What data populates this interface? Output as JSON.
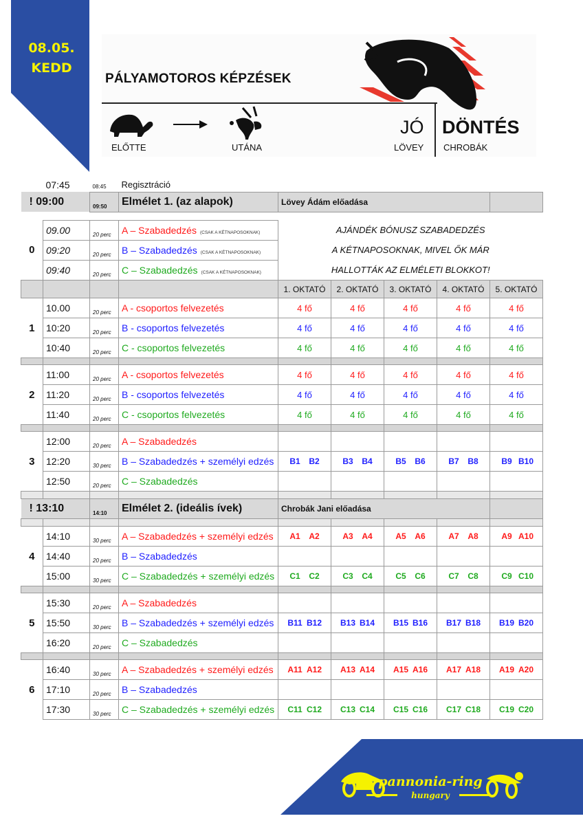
{
  "header": {
    "date": "08.05.",
    "day": "KEDD",
    "title": "PÁLYAMOTOROS KÉPZÉSEK",
    "before_label": "ELŐTTE",
    "after_label": "UTÁNA",
    "left_word": "JÓ",
    "left_name": "LÖVEY",
    "right_word": "DÖNTÉS",
    "right_name": "CHROBÁK"
  },
  "colors": {
    "A": "#ff1a1a",
    "B": "#1f1fff",
    "C": "#1faa1f",
    "brand_blue": "#2a4ea3",
    "brand_yellow": "#f5f200"
  },
  "schedule": [
    {
      "type": "plain",
      "time": "07:45",
      "end": "08:45",
      "label": "Regisztráció"
    },
    {
      "type": "theory",
      "time": "! 09:00",
      "end": "09:50",
      "title": "Elmélet 1. (az alapok)",
      "lecturer": "Lövey Ádám előadása"
    },
    {
      "type": "bonus",
      "number": "0",
      "note_lines": [
        "AJÁNDÉK BÓNUSZ SZABADEDZÉS",
        "A KÉTNAPOSOKNAK, MIVEL ŐK MÁR",
        "HALLOTTÁK AZ ELMÉLETI BLOKKOT!"
      ],
      "rows": [
        {
          "group": "A",
          "time": "09.00",
          "duration": "20 perc",
          "label": "A – Szabadedzés",
          "note": "(CSAK A KÉTNAPOSOKNAK)"
        },
        {
          "group": "B",
          "time": "09:20",
          "duration": "20 perc",
          "label": "B – Szabadedzés",
          "note": "(CSAK A KÉTNAPOSOKNAK)"
        },
        {
          "group": "C",
          "time": "09:40",
          "duration": "20 perc",
          "label": "C – Szabadedzés",
          "note": "(CSAK A KÉTNAPOSOKNAK)"
        }
      ]
    },
    {
      "type": "instructors",
      "labels": [
        "1. OKTATÓ",
        "2. OKTATÓ",
        "3. OKTATÓ",
        "4. OKTATÓ",
        "5. OKTATÓ"
      ]
    },
    {
      "type": "session",
      "number": "1",
      "rows": [
        {
          "group": "A",
          "time": "10.00",
          "duration": "20 perc",
          "label": "A -  csoportos felvezetés",
          "cells": [
            "4 fő",
            "4 fő",
            "4 fő",
            "4 fő",
            "4 fő"
          ]
        },
        {
          "group": "B",
          "time": "10:20",
          "duration": "20 perc",
          "label": "B -  csoportos felvezetés",
          "cells": [
            "4 fő",
            "4 fő",
            "4 fő",
            "4 fő",
            "4 fő"
          ]
        },
        {
          "group": "C",
          "time": "10:40",
          "duration": "20 perc",
          "label": "C -  csoportos felvezetés",
          "cells": [
            "4 fő",
            "4 fő",
            "4 fő",
            "4 fő",
            "4 fő"
          ]
        }
      ]
    },
    {
      "type": "session",
      "number": "2",
      "rows": [
        {
          "group": "A",
          "time": "11:00",
          "duration": "20 perc",
          "label": "A -  csoportos felvezetés",
          "cells": [
            "4 fő",
            "4 fő",
            "4 fő",
            "4 fő",
            "4 fő"
          ]
        },
        {
          "group": "B",
          "time": "11:20",
          "duration": "20 perc",
          "label": "B -  csoportos felvezetés",
          "cells": [
            "4 fő",
            "4 fő",
            "4 fő",
            "4 fő",
            "4 fő"
          ]
        },
        {
          "group": "C",
          "time": "11:40",
          "duration": "20 perc",
          "label": "C -  csoportos felvezetés",
          "cells": [
            "4 fő",
            "4 fő",
            "4 fő",
            "4 fő",
            "4 fő"
          ]
        }
      ]
    },
    {
      "type": "session",
      "number": "3",
      "rows": [
        {
          "group": "A",
          "time": "12:00",
          "duration": "20 perc",
          "label": "A – Szabadedzés",
          "cells": []
        },
        {
          "group": "B",
          "time": "12:20",
          "duration": "30 perc",
          "label": "B – Szabadedzés + személyi edzés",
          "cells": [
            [
              "B1",
              "B2"
            ],
            [
              "B3",
              "B4"
            ],
            [
              "B5",
              "B6"
            ],
            [
              "B7",
              "B8"
            ],
            [
              "B9",
              "B10"
            ]
          ]
        },
        {
          "group": "C",
          "time": "12:50",
          "duration": "20 perc",
          "label": "C – Szabadedzés",
          "cells": []
        }
      ]
    },
    {
      "type": "theory",
      "time": "! 13:10",
      "end": "14:10",
      "title": "Elmélet 2. (ideális ívek)",
      "lecturer": "Chrobák Jani előadása"
    },
    {
      "type": "session",
      "number": "4",
      "rows": [
        {
          "group": "A",
          "time": "14:10",
          "duration": "30 perc",
          "label": "A – Szabadedzés + személyi edzés",
          "cells": [
            [
              "A1",
              "A2"
            ],
            [
              "A3",
              "A4"
            ],
            [
              "A5",
              "A6"
            ],
            [
              "A7",
              "A8"
            ],
            [
              "A9",
              "A10"
            ]
          ]
        },
        {
          "group": "B",
          "time": "14:40",
          "duration": "20 perc",
          "label": "B – Szabadedzés",
          "cells": []
        },
        {
          "group": "C",
          "time": "15:00",
          "duration": "30 perc",
          "label": "C – Szabadedzés + személyi edzés",
          "cells": [
            [
              "C1",
              "C2"
            ],
            [
              "C3",
              "C4"
            ],
            [
              "C5",
              "C6"
            ],
            [
              "C7",
              "C8"
            ],
            [
              "C9",
              "C10"
            ]
          ]
        }
      ]
    },
    {
      "type": "session",
      "number": "5",
      "rows": [
        {
          "group": "A",
          "time": "15:30",
          "duration": "20 perc",
          "label": "A – Szabadedzés",
          "cells": []
        },
        {
          "group": "B",
          "time": "15:50",
          "duration": "30 perc",
          "label": "B – Szabadedzés + személyi edzés",
          "cells": [
            [
              "B11",
              "B12"
            ],
            [
              "B13",
              "B14"
            ],
            [
              "B15",
              "B16"
            ],
            [
              "B17",
              "B18"
            ],
            [
              "B19",
              "B20"
            ]
          ]
        },
        {
          "group": "C",
          "time": "16:20",
          "duration": "20 perc",
          "label": "C – Szabadedzés",
          "cells": []
        }
      ]
    },
    {
      "type": "session",
      "number": "6",
      "rows": [
        {
          "group": "A",
          "time": "16:40",
          "duration": "30 perc",
          "label": "A – Szabadedzés + személyi edzés",
          "cells": [
            [
              "A11",
              "A12"
            ],
            [
              "A13",
              "A14"
            ],
            [
              "A15",
              "A16"
            ],
            [
              "A17",
              "A18"
            ],
            [
              "A19",
              "A20"
            ]
          ]
        },
        {
          "group": "B",
          "time": "17:10",
          "duration": "20 perc",
          "label": "B – Szabadedzés",
          "cells": []
        },
        {
          "group": "C",
          "time": "17:30",
          "duration": "30 perc",
          "label": "C – Szabadedzés + személyi edzés",
          "cells": [
            [
              "C11",
              "C12"
            ],
            [
              "C13",
              "C14"
            ],
            [
              "C15",
              "C16"
            ],
            [
              "C17",
              "C18"
            ],
            [
              "C19",
              "C20"
            ]
          ]
        }
      ]
    }
  ],
  "footer": {
    "logo_text": "pannonia-ring",
    "logo_subtext": "hungary"
  }
}
